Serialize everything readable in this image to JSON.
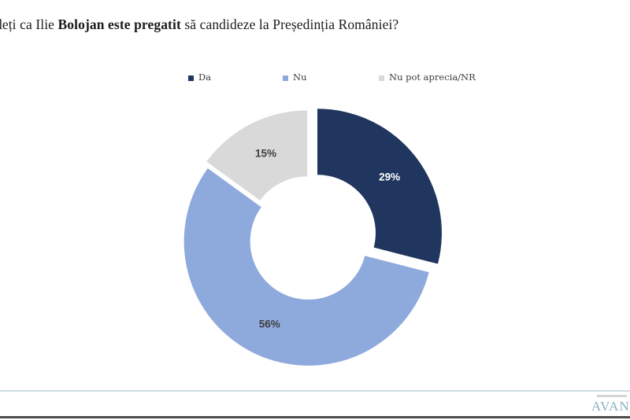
{
  "title": {
    "prefix": "deți ca Ilie ",
    "bold": "Bolojan este pregatit",
    "suffix": " să candideze la Președinția României?"
  },
  "legend": {
    "items": [
      {
        "label": "Da",
        "color": "#20365f"
      },
      {
        "label": "Nu",
        "color": "#8ea9db"
      },
      {
        "label": "Nu pot aprecia/NR",
        "color": "#d9d9d9"
      }
    ]
  },
  "chart_data": {
    "type": "pie",
    "subtype": "donut",
    "title": "deți ca Ilie Bolojan este pregatit să candideze la Președinția României?",
    "categories": [
      "Da",
      "Nu",
      "Nu pot aprecia/NR"
    ],
    "values": [
      29,
      56,
      15
    ],
    "labels": [
      "29%",
      "56%",
      "15%"
    ],
    "colors": [
      "#20365f",
      "#8ea9db",
      "#d9d9d9"
    ],
    "label_colors": [
      "#ffffff",
      "#3f3f3f",
      "#3f3f3f"
    ],
    "start_angle_deg": 0,
    "direction": "clockwise",
    "explode": [
      0.08,
      0.02,
      0.04
    ],
    "legend_position": "top",
    "hole_ratio": 0.47
  },
  "footer": {
    "logo_text": "AVAN"
  }
}
